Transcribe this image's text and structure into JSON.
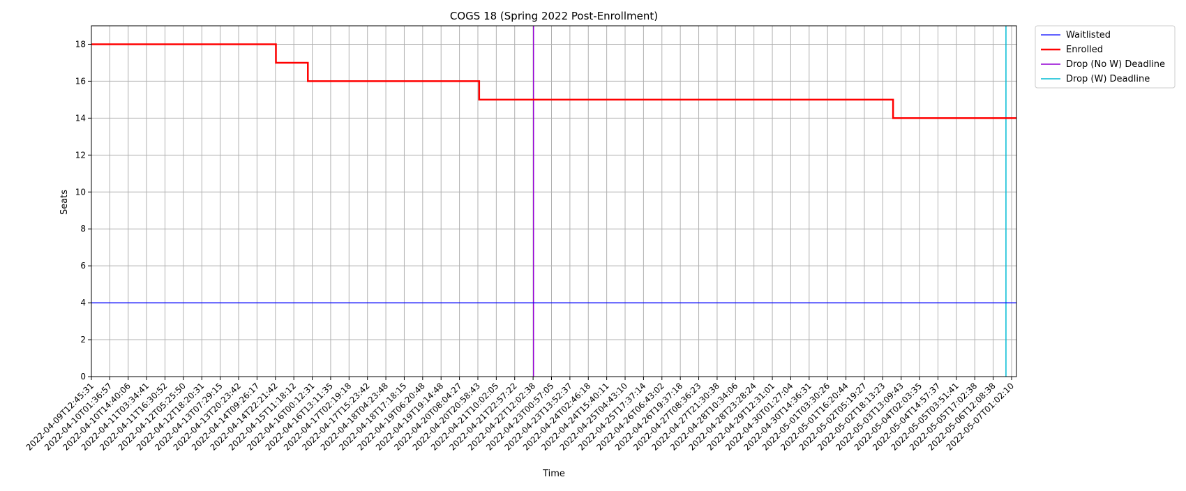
{
  "chart_data": {
    "type": "line",
    "title": "COGS 18 (Spring 2022 Post-Enrollment)",
    "xlabel": "Time",
    "ylabel": "Seats",
    "ylim": [
      0,
      19
    ],
    "yticks": [
      0,
      2,
      4,
      6,
      8,
      10,
      12,
      14,
      16,
      18
    ],
    "grid": true,
    "legend_position": "outside-top-right",
    "x_tick_labels": [
      "2022-04-09T12:45:31",
      "2022-04-10T01:36:57",
      "2022-04-10T14:40:06",
      "2022-04-11T03:34:41",
      "2022-04-11T16:30:52",
      "2022-04-12T05:25:50",
      "2022-04-12T18:20:31",
      "2022-04-13T07:29:15",
      "2022-04-13T20:23:42",
      "2022-04-14T09:26:17",
      "2022-04-14T22:21:42",
      "2022-04-15T11:18:12",
      "2022-04-16T00:12:31",
      "2022-04-16T13:11:35",
      "2022-04-17T02:19:18",
      "2022-04-17T15:23:42",
      "2022-04-18T04:23:48",
      "2022-04-18T17:18:15",
      "2022-04-19T06:20:48",
      "2022-04-19T19:14:48",
      "2022-04-20T08:04:27",
      "2022-04-20T20:58:43",
      "2022-04-21T10:02:05",
      "2022-04-21T22:57:22",
      "2022-04-22T12:02:38",
      "2022-04-23T00:57:05",
      "2022-04-23T13:52:37",
      "2022-04-24T02:46:18",
      "2022-04-24T15:40:11",
      "2022-04-25T04:43:10",
      "2022-04-25T17:37:14",
      "2022-04-26T06:43:02",
      "2022-04-26T19:37:18",
      "2022-04-27T08:36:23",
      "2022-04-27T21:30:38",
      "2022-04-28T10:34:06",
      "2022-04-28T23:28:24",
      "2022-04-29T12:31:01",
      "2022-04-30T01:27:04",
      "2022-04-30T14:36:31",
      "2022-05-01T03:30:26",
      "2022-05-01T16:20:44",
      "2022-05-02T05:19:27",
      "2022-05-02T18:13:23",
      "2022-05-03T13:09:43",
      "2022-05-04T02:03:35",
      "2022-05-04T14:57:37",
      "2022-05-05T03:51:41",
      "2022-05-05T17:02:38",
      "2022-05-06T12:08:38",
      "2022-05-07T01:02:10"
    ],
    "series": [
      {
        "name": "Waitlisted",
        "color": "#0000ff",
        "steps": [
          {
            "from": "2022-04-09T12:45:31",
            "value": 4
          }
        ]
      },
      {
        "name": "Enrolled",
        "color": "#ff0000",
        "steps": [
          {
            "from": "2022-04-09T12:45:31",
            "value": 18
          },
          {
            "from": "2022-04-15T01:10:00",
            "value": 17
          },
          {
            "from": "2022-04-16T00:05:00",
            "value": 16
          },
          {
            "from": "2022-04-21T03:00:00",
            "value": 15
          },
          {
            "from": "2022-05-03T12:00:00",
            "value": 14
          }
        ]
      }
    ],
    "vlines": [
      {
        "name": "Drop (No W) Deadline",
        "color": "#9400d3",
        "at": "2022-04-22T18:00:00"
      },
      {
        "name": "Drop (W) Deadline",
        "color": "#00bcd4",
        "at": "2022-05-06T21:00:00"
      }
    ]
  }
}
